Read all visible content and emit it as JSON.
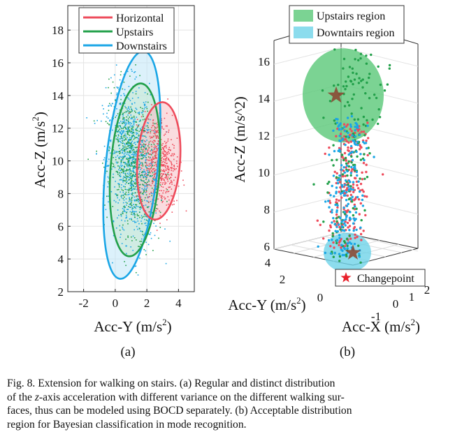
{
  "chart_data": [
    {
      "type": "scatter",
      "panel_label": "(a)",
      "xlabel": "Acc-Y (m/s",
      "xlabel_sup": "2",
      "xlabel_end": ")",
      "ylabel": "Acc-Z (m/s",
      "ylabel_sup": "2",
      "ylabel_end": ")",
      "xlim": [
        -3,
        5
      ],
      "ylim": [
        2,
        19.5
      ],
      "xticks": [
        "-2",
        "0",
        "2",
        "4"
      ],
      "yticks": [
        "2",
        "4",
        "6",
        "8",
        "10",
        "12",
        "14",
        "16",
        "18"
      ],
      "grid": true,
      "legend_position": "top",
      "series": [
        {
          "name": "Horizontal",
          "color": "#ee4b5b",
          "fill": "#f6c0c4",
          "ellipse": {
            "cx": 2.75,
            "cy": 10.0,
            "rx": 1.35,
            "ry": 3.6,
            "angle_deg": 4
          },
          "cluster": {
            "mx": 2.8,
            "my": 10.0,
            "sx": 0.5,
            "sy": 1.4,
            "n": 520
          }
        },
        {
          "name": "Upstairs",
          "color": "#22a04a",
          "fill": "#c6e8cf",
          "ellipse": {
            "cx": 1.25,
            "cy": 9.45,
            "rx": 1.55,
            "ry": 5.3,
            "angle_deg": 4
          },
          "cluster": {
            "mx": 1.1,
            "my": 9.8,
            "sx": 0.75,
            "sy": 2.1,
            "n": 620
          }
        },
        {
          "name": "Downstairs",
          "color": "#1aa6e6",
          "fill": "#bfe6f7",
          "ellipse": {
            "cx": 1.05,
            "cy": 9.75,
            "rx": 1.65,
            "ry": 7.0,
            "angle_deg": 6
          },
          "cluster": {
            "mx": 1.0,
            "my": 9.9,
            "sx": 0.75,
            "sy": 2.4,
            "n": 900
          }
        }
      ]
    },
    {
      "type": "scatter3d",
      "panel_label": "(b)",
      "xlabel": "Acc-X (m/s",
      "xlabel_sup": "2",
      "xlabel_end": ")",
      "ylabel": "Acc-Y (m/s",
      "ylabel_sup": "2",
      "ylabel_end": ")",
      "zlabel": "Acc-Z (m/s^2)",
      "xticks": [
        "-1",
        "0",
        "1",
        "2"
      ],
      "yticks": [
        "4",
        "2",
        "0"
      ],
      "zticks": [
        "6",
        "8",
        "10",
        "12",
        "14",
        "16"
      ],
      "zlim": [
        5,
        17.5
      ],
      "legend_position": "top",
      "regions": [
        {
          "name": "Upstairs region",
          "color": "#5ac878",
          "cz": 14.2,
          "rz": 2.5
        },
        {
          "name": "Downtairs region",
          "color": "#6fd3e8",
          "cz": 5.7,
          "rz": 1.1
        }
      ],
      "changepoints": [
        {
          "z": 14.2
        },
        {
          "z": 5.8
        }
      ],
      "changepoint_legend": {
        "name": "Changepoint",
        "color": "#e8202a"
      },
      "series": [
        {
          "name": "Horizontal",
          "color": "#ee4b5b",
          "z_range": [
            6.0,
            12.5
          ],
          "n": 200
        },
        {
          "name": "Upstairs",
          "color": "#22a04a",
          "z_range": [
            5.0,
            16.5
          ],
          "n": 170
        },
        {
          "name": "Downstairs",
          "color": "#1aa6e6",
          "z_range": [
            5.5,
            12.8
          ],
          "n": 190
        }
      ]
    }
  ],
  "caption": {
    "line1": "Fig. 8.   Extension for walking on stairs. (a) Regular and distinct distribution",
    "line2a": "of the ",
    "line2z": "z",
    "line2b": "-axis acceleration with different variance on the different walking sur-",
    "line3": "faces, thus can be modeled using BOCD separately. (b) Acceptable distribution",
    "line4": "region for Bayesian classification in mode recognition."
  }
}
